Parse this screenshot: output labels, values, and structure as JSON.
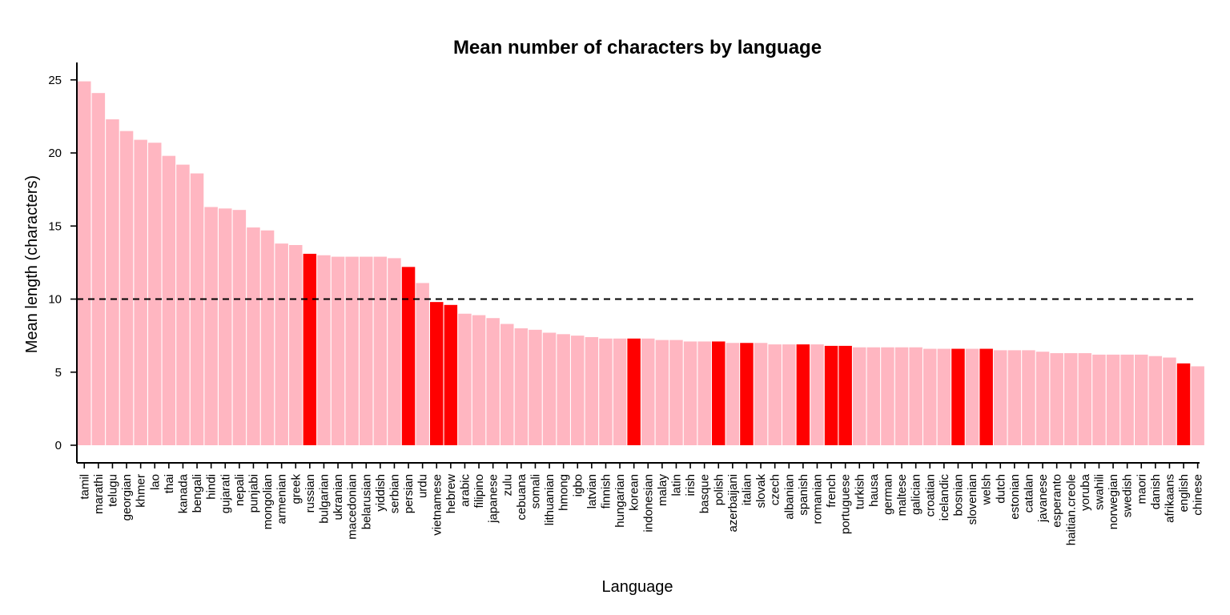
{
  "chart_data": {
    "type": "bar",
    "title": "Mean number of characters by language",
    "xlabel": "Language",
    "ylabel": "Mean length (characters)",
    "ylim": [
      0,
      26
    ],
    "yticks": [
      0,
      5,
      10,
      15,
      20,
      25
    ],
    "reference_line": 10,
    "grid": false,
    "legend": "none",
    "colors": {
      "default": "#FFB6C1",
      "highlight": "#FF0000"
    },
    "categories": [
      "tamil",
      "marathi",
      "telugu",
      "georgian",
      "khmer",
      "lao",
      "thai",
      "kanada",
      "bengali",
      "hindi",
      "gujarati",
      "nepali",
      "punjabi",
      "mongolian",
      "armenian",
      "greek",
      "russian",
      "bulgarian",
      "ukranian",
      "macedonian",
      "belarusian",
      "yiddish",
      "serbian",
      "persian",
      "urdu",
      "vietnamese",
      "hebrew",
      "arabic",
      "filipino",
      "japanese",
      "zulu",
      "cebuana",
      "somali",
      "lithuanian",
      "hmong",
      "igbo",
      "latvian",
      "finnish",
      "hungarian",
      "korean",
      "indonesian",
      "malay",
      "latin",
      "irish",
      "basque",
      "polish",
      "azerbaijani",
      "italian",
      "slovak",
      "czech",
      "albanian",
      "spanish",
      "romanian",
      "french",
      "portuguese",
      "turkish",
      "hausa",
      "german",
      "maltese",
      "galician",
      "croatian",
      "icelandic",
      "bosnian",
      "slovenian",
      "welsh",
      "dutch",
      "estonian",
      "catalan",
      "javanese",
      "esperanto",
      "haitian.creole",
      "yoruba",
      "swahili",
      "norwegian",
      "swedish",
      "maori",
      "danish",
      "afrikaans",
      "english",
      "chinese"
    ],
    "values": [
      24.9,
      24.1,
      22.3,
      21.5,
      20.9,
      20.7,
      19.8,
      19.2,
      18.6,
      16.3,
      16.2,
      16.1,
      14.9,
      14.7,
      13.8,
      13.7,
      13.1,
      13.0,
      12.9,
      12.9,
      12.9,
      12.9,
      12.8,
      12.2,
      11.1,
      9.8,
      9.6,
      9.0,
      8.9,
      8.7,
      8.3,
      8.0,
      7.9,
      7.7,
      7.6,
      7.5,
      7.4,
      7.3,
      7.3,
      7.3,
      7.3,
      7.2,
      7.2,
      7.1,
      7.1,
      7.1,
      7.0,
      7.0,
      7.0,
      6.9,
      6.9,
      6.9,
      6.9,
      6.8,
      6.8,
      6.7,
      6.7,
      6.7,
      6.7,
      6.7,
      6.6,
      6.6,
      6.6,
      6.6,
      6.6,
      6.5,
      6.5,
      6.5,
      6.4,
      6.3,
      6.3,
      6.3,
      6.2,
      6.2,
      6.2,
      6.2,
      6.1,
      6.0,
      5.6,
      5.4
    ],
    "highlighted": [
      "russian",
      "persian",
      "vietnamese",
      "hebrew",
      "korean",
      "polish",
      "italian",
      "spanish",
      "french",
      "portuguese",
      "bosnian",
      "welsh",
      "english"
    ]
  }
}
